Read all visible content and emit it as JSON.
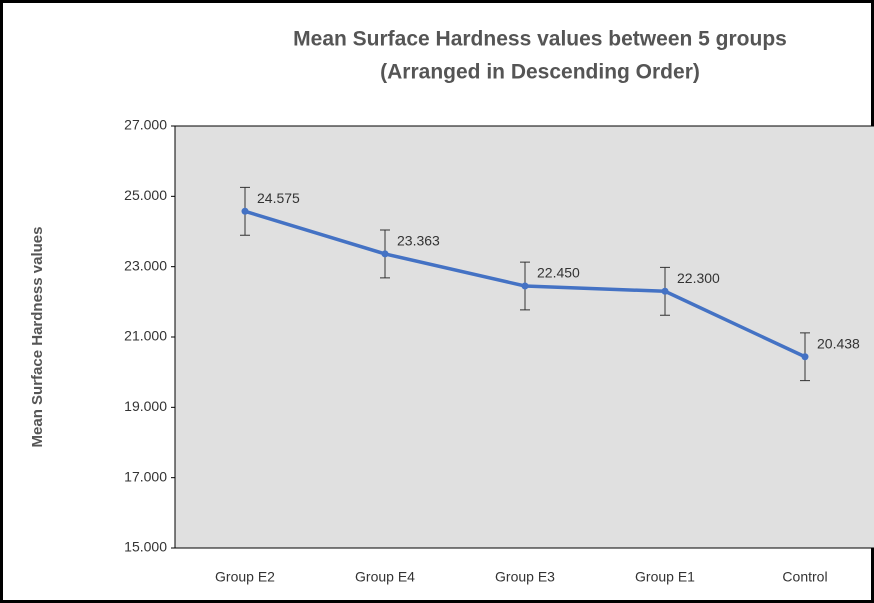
{
  "chart_data": {
    "type": "line",
    "title": "Mean Surface Hardness values between 5 groups",
    "subtitle": "(Arranged in Descending Order)",
    "y_label": "Mean Surface Hardness  values",
    "categories": [
      "Group E2",
      "Group E4",
      "Group E3",
      "Group E1",
      "Control"
    ],
    "series": [
      {
        "name": "Mean Surface Hardness",
        "color": "#4472c4",
        "values": [
          24.575,
          23.363,
          22.45,
          22.3,
          20.438
        ],
        "value_labels": [
          "24.575",
          "23.363",
          "22.450",
          "22.300",
          "20.438"
        ],
        "error": [
          0.68,
          0.68,
          0.68,
          0.68,
          0.68
        ]
      }
    ],
    "ylim": [
      15,
      27
    ],
    "yticks": [
      {
        "value": 15,
        "label": "15.000"
      },
      {
        "value": 17,
        "label": "17.000"
      },
      {
        "value": 19,
        "label": "19.000"
      },
      {
        "value": 21,
        "label": "21.000"
      },
      {
        "value": 23,
        "label": "23.000"
      },
      {
        "value": 25,
        "label": "25.000"
      },
      {
        "value": 27,
        "label": "27.000"
      }
    ],
    "plot_background": "#e0e0e0"
  }
}
